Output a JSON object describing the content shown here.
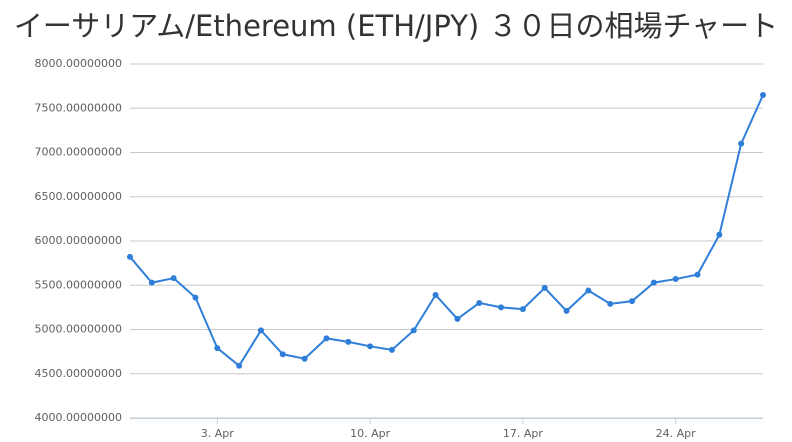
{
  "chart_data": {
    "type": "line",
    "title": "イーサリアム/Ethereum (ETH/JPY) ３０日の相場チャート",
    "categories": [
      null,
      null,
      null,
      null,
      "3. Apr",
      null,
      null,
      null,
      null,
      null,
      null,
      "10. Apr",
      null,
      null,
      null,
      null,
      null,
      null,
      "17. Apr",
      null,
      null,
      null,
      null,
      null,
      null,
      "24. Apr",
      null,
      null,
      null,
      null
    ],
    "series": [
      {
        "name": "ETH/JPY",
        "color": "#2f7ed8",
        "values": [
          5820,
          5530,
          5580,
          5360,
          4790,
          4590,
          4990,
          4720,
          4670,
          4900,
          4860,
          4810,
          4770,
          4990,
          5390,
          5120,
          5300,
          5250,
          5230,
          5470,
          5210,
          5440,
          5290,
          5320,
          5530,
          5570,
          5620,
          6070,
          7100,
          7650
        ]
      }
    ],
    "ylim": [
      4000,
      8000
    ],
    "yticks": [
      {
        "value": 4000,
        "label": "4000.00000000"
      },
      {
        "value": 4500,
        "label": "4500.00000000"
      },
      {
        "value": 5000,
        "label": "5000.00000000"
      },
      {
        "value": 5500,
        "label": "5500.00000000"
      },
      {
        "value": 6000,
        "label": "6000.00000000"
      },
      {
        "value": 6500,
        "label": "6500.00000000"
      },
      {
        "value": 7000,
        "label": "7000.00000000"
      },
      {
        "value": 7500,
        "label": "7500.00000000"
      },
      {
        "value": 8000,
        "label": "8000.00000000"
      }
    ],
    "grid": true
  }
}
